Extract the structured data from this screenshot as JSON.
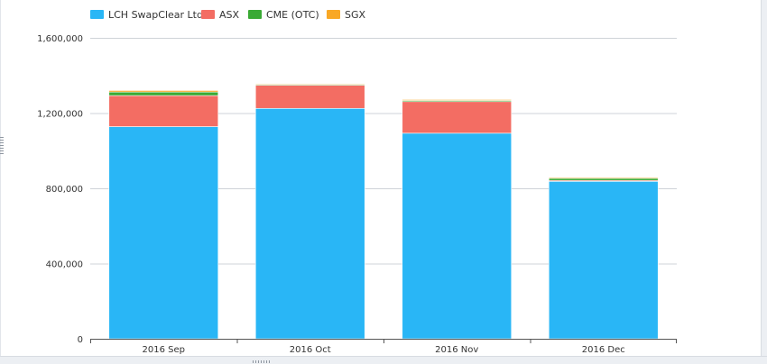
{
  "chart_data": {
    "type": "bar",
    "stacked": true,
    "categories": [
      "2016 Sep",
      "2016 Oct",
      "2016 Nov",
      "2016 Dec"
    ],
    "series": [
      {
        "name": "LCH SwapClear Ltd",
        "color": "#29b6f6",
        "values": [
          1128000,
          1225000,
          1093000,
          837000
        ]
      },
      {
        "name": "ASX",
        "color": "#f36d63",
        "values": [
          165000,
          123000,
          168000,
          5000
        ]
      },
      {
        "name": "CME (OTC)",
        "color": "#3aaa35",
        "values": [
          19000,
          4000,
          6000,
          11000
        ]
      },
      {
        "name": "SGX",
        "color": "#f9a825",
        "values": [
          8000,
          4000,
          5000,
          5000
        ]
      }
    ],
    "xlabel": "",
    "ylabel": "",
    "ylim": [
      0,
      1600000
    ],
    "yticks": [
      0,
      400000,
      800000,
      1200000,
      1600000
    ],
    "ytick_labels": [
      "0",
      "400,000",
      "800,000",
      "1,200,000",
      "1,600,000"
    ],
    "grid": true,
    "legend_position": "top-left"
  }
}
